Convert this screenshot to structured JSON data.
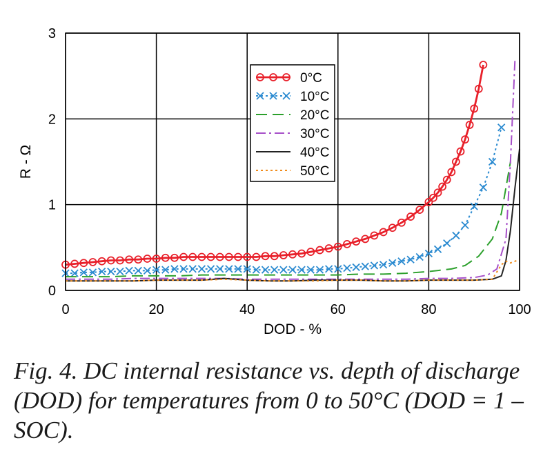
{
  "caption": "Fig. 4. DC internal resistance vs. depth of discharge (DOD) for temperatures from 0 to 50°C (DOD = 1 – SOC).",
  "chart_data": {
    "type": "line",
    "xlabel": "DOD - %",
    "ylabel": "R - Ω",
    "xlim": [
      0,
      100
    ],
    "ylim": [
      0,
      3
    ],
    "xticks": [
      "0",
      "20",
      "40",
      "60",
      "80",
      "100"
    ],
    "yticks": [
      "0",
      "1",
      "2",
      "3"
    ],
    "grid": true,
    "legend_position": "upper-center",
    "series": [
      {
        "name": "0°C",
        "color": "#e8202a",
        "marker": "circle",
        "line": "solid",
        "x": [
          0,
          2,
          4,
          6,
          8,
          10,
          12,
          14,
          16,
          18,
          20,
          22,
          24,
          26,
          28,
          30,
          32,
          34,
          36,
          38,
          40,
          42,
          44,
          46,
          48,
          50,
          52,
          54,
          56,
          58,
          60,
          62,
          64,
          66,
          68,
          70,
          72,
          74,
          76,
          78,
          80,
          81,
          82,
          83,
          84,
          85,
          86,
          87,
          88,
          89,
          90,
          91,
          92
        ],
        "y": [
          0.3,
          0.31,
          0.32,
          0.33,
          0.34,
          0.35,
          0.35,
          0.36,
          0.36,
          0.37,
          0.37,
          0.38,
          0.38,
          0.39,
          0.39,
          0.39,
          0.39,
          0.39,
          0.39,
          0.39,
          0.39,
          0.39,
          0.4,
          0.4,
          0.41,
          0.42,
          0.43,
          0.45,
          0.47,
          0.49,
          0.51,
          0.54,
          0.57,
          0.6,
          0.64,
          0.68,
          0.73,
          0.79,
          0.86,
          0.94,
          1.03,
          1.08,
          1.14,
          1.21,
          1.29,
          1.38,
          1.5,
          1.62,
          1.76,
          1.93,
          2.12,
          2.35,
          2.63
        ]
      },
      {
        "name": "10°C",
        "color": "#2a8ad0",
        "marker": "x",
        "line": "dotted",
        "x": [
          0,
          2,
          4,
          6,
          8,
          10,
          12,
          14,
          16,
          18,
          20,
          22,
          24,
          26,
          28,
          30,
          32,
          34,
          36,
          38,
          40,
          42,
          44,
          46,
          48,
          50,
          52,
          54,
          56,
          58,
          60,
          62,
          64,
          66,
          68,
          70,
          72,
          74,
          76,
          78,
          80,
          82,
          84,
          86,
          88,
          90,
          92,
          94,
          96
        ],
        "y": [
          0.2,
          0.2,
          0.21,
          0.21,
          0.22,
          0.22,
          0.22,
          0.23,
          0.23,
          0.23,
          0.24,
          0.24,
          0.25,
          0.25,
          0.25,
          0.25,
          0.25,
          0.25,
          0.25,
          0.25,
          0.25,
          0.24,
          0.24,
          0.24,
          0.24,
          0.24,
          0.24,
          0.24,
          0.24,
          0.25,
          0.25,
          0.26,
          0.27,
          0.28,
          0.29,
          0.3,
          0.32,
          0.34,
          0.36,
          0.39,
          0.43,
          0.48,
          0.55,
          0.64,
          0.76,
          0.98,
          1.2,
          1.5,
          1.9
        ]
      },
      {
        "name": "20°C",
        "color": "#2ca02c",
        "line": "dashed",
        "x": [
          0,
          5,
          10,
          15,
          20,
          25,
          30,
          35,
          40,
          45,
          50,
          55,
          60,
          65,
          70,
          75,
          80,
          85,
          88,
          91,
          94,
          96,
          97,
          98
        ],
        "y": [
          0.16,
          0.16,
          0.16,
          0.17,
          0.17,
          0.17,
          0.18,
          0.18,
          0.18,
          0.18,
          0.18,
          0.18,
          0.18,
          0.19,
          0.19,
          0.2,
          0.22,
          0.25,
          0.29,
          0.4,
          0.6,
          0.9,
          1.2,
          1.5
        ]
      },
      {
        "name": "30°C",
        "color": "#a64ec8",
        "line": "dashdot",
        "x": [
          0,
          5,
          10,
          15,
          20,
          25,
          30,
          35,
          40,
          45,
          50,
          55,
          60,
          65,
          70,
          75,
          80,
          85,
          90,
          93,
          95,
          97,
          98,
          99
        ],
        "y": [
          0.13,
          0.13,
          0.13,
          0.14,
          0.14,
          0.14,
          0.14,
          0.14,
          0.13,
          0.13,
          0.13,
          0.13,
          0.13,
          0.13,
          0.13,
          0.13,
          0.14,
          0.14,
          0.15,
          0.18,
          0.25,
          0.6,
          1.5,
          2.7
        ]
      },
      {
        "name": "40°C",
        "color": "#222222",
        "line": "solid",
        "x": [
          0,
          5,
          10,
          15,
          20,
          25,
          30,
          35,
          40,
          45,
          50,
          55,
          60,
          65,
          70,
          75,
          80,
          85,
          90,
          94,
          96,
          97,
          98,
          99,
          100
        ],
        "y": [
          0.11,
          0.11,
          0.11,
          0.11,
          0.12,
          0.12,
          0.12,
          0.14,
          0.12,
          0.11,
          0.11,
          0.12,
          0.12,
          0.12,
          0.11,
          0.11,
          0.12,
          0.12,
          0.12,
          0.13,
          0.17,
          0.35,
          0.7,
          1.2,
          1.65
        ]
      },
      {
        "name": "50°C",
        "color": "#f08c1c",
        "line": "dotted",
        "x": [
          0,
          5,
          10,
          15,
          20,
          25,
          30,
          35,
          40,
          45,
          50,
          55,
          60,
          65,
          70,
          75,
          80,
          85,
          90,
          94,
          96,
          97,
          98,
          100
        ],
        "y": [
          0.11,
          0.11,
          0.11,
          0.11,
          0.12,
          0.12,
          0.12,
          0.13,
          0.12,
          0.11,
          0.11,
          0.11,
          0.12,
          0.12,
          0.11,
          0.11,
          0.12,
          0.12,
          0.12,
          0.13,
          0.3,
          0.34,
          0.32,
          0.36
        ]
      }
    ]
  }
}
